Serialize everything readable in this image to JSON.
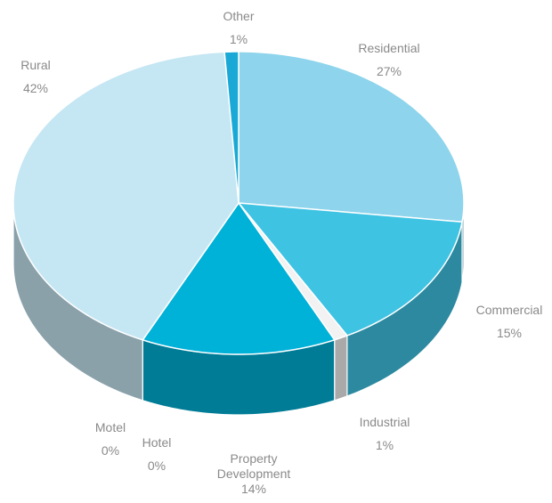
{
  "chart_data": {
    "type": "pie",
    "categories": [
      "Residential",
      "Commercial",
      "Industrial",
      "Property Development",
      "Hotel",
      "Motel",
      "Rural",
      "Other"
    ],
    "values": [
      27,
      15,
      1,
      14,
      0,
      0,
      42,
      1
    ],
    "value_labels": [
      "27%",
      "15%",
      "1%",
      "14%",
      "0%",
      "0%",
      "42%",
      "1%"
    ],
    "colors": [
      "#8dd4ec",
      "#3fc3e3",
      "#f2f2f2",
      "#00b1d8",
      "#bcbcbc",
      "#d0d0d0",
      "#c5e6f3",
      "#1aa9d6"
    ]
  }
}
